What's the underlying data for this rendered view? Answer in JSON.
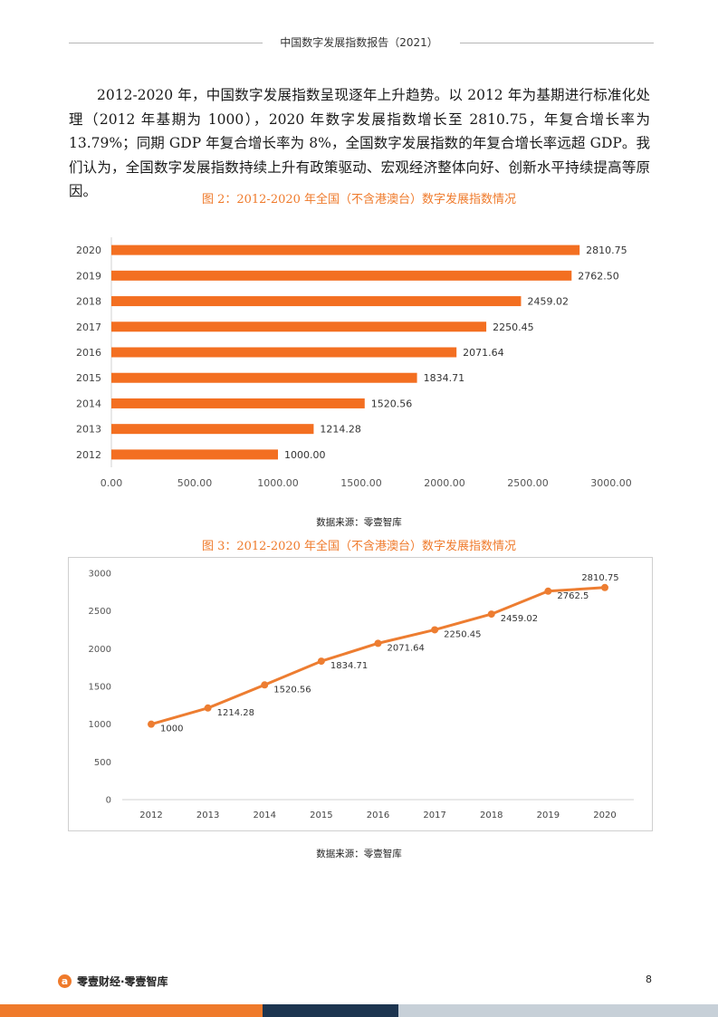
{
  "header": {
    "title": "中国数字发展指数报告（2021）"
  },
  "body": {
    "paragraph": "2012-2020 年，中国数字发展指数呈现逐年上升趋势。以 2012 年为基期进行标准化处理（2012 年基期为 1000），2020 年数字发展指数增长至 2810.75，年复合增长率为 13.79%；同期 GDP 年复合增长率为 8%，全国数字发展指数的年复合增长率远超 GDP。我们认为，全国数字发展指数持续上升有政策驱动、宏观经济整体向好、创新水平持续提高等原因。"
  },
  "figures": [
    {
      "caption": "图 2：2012-2020 年全国（不含港澳台）数字发展指数情况",
      "source": "数据来源：零壹智库"
    },
    {
      "caption": "图 3：2012-2020 年全国（不含港澳台）数字发展指数情况",
      "source": "数据来源：零壹智库"
    }
  ],
  "chart_data": [
    {
      "type": "bar",
      "orientation": "horizontal",
      "categories": [
        "2020",
        "2019",
        "2018",
        "2017",
        "2016",
        "2015",
        "2014",
        "2013",
        "2012"
      ],
      "values": [
        2810.75,
        2762.5,
        2459.02,
        2250.45,
        2071.64,
        1834.71,
        1520.56,
        1214.28,
        1000.0
      ],
      "value_labels": [
        "2810.75",
        "2762.50",
        "2459.02",
        "2250.45",
        "2071.64",
        "1834.71",
        "1520.56",
        "1214.28",
        "1000.00"
      ],
      "xlim": [
        0,
        3000
      ],
      "xticks": [
        "0.00",
        "500.00",
        "1000.00",
        "1500.00",
        "2000.00",
        "2500.00",
        "3000.00"
      ],
      "grid": false,
      "color": "#f36f21"
    },
    {
      "type": "line",
      "x": [
        "2012",
        "2013",
        "2014",
        "2015",
        "2016",
        "2017",
        "2018",
        "2019",
        "2020"
      ],
      "values": [
        1000,
        1214.28,
        1520.56,
        1834.71,
        2071.64,
        2250.45,
        2459.02,
        2762.5,
        2810.75
      ],
      "value_labels": [
        "1000",
        "1214.28",
        "1520.56",
        "1834.71",
        "2071.64",
        "2250.45",
        "2459.02",
        "2762.5",
        "2810.75"
      ],
      "ylim": [
        0,
        3000
      ],
      "yticks": [
        "0",
        "500",
        "1000",
        "1500",
        "2000",
        "2500",
        "3000"
      ],
      "grid": false,
      "markers": true,
      "color": "#ed7d31"
    }
  ],
  "footer": {
    "logo_mark": "a",
    "brand": "零壹财经·零壹智库",
    "page_number": "8",
    "colors": {
      "orange": "#ef7a2b",
      "navy": "#1d3550",
      "gray": "#c7d0d8"
    }
  }
}
